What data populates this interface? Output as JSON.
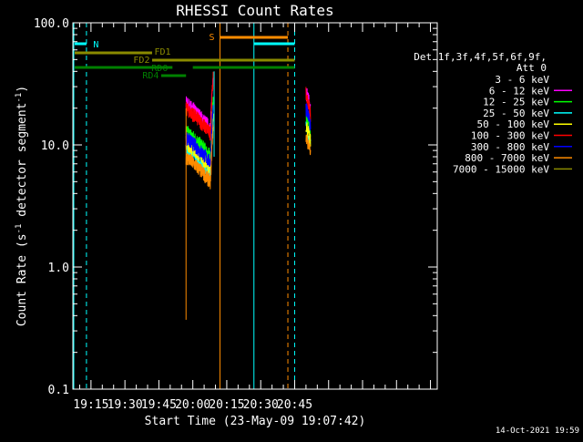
{
  "chart_data": {
    "type": "line",
    "title": "RHESSI Count Rates",
    "xlabel": "Start Time (23-May-09 19:07:42)",
    "ylabel_main": "Count Rate (s",
    "ylabel_sup1": "-1",
    "ylabel_mid": " detector segment",
    "ylabel_sup2": "-1",
    "ylabel_end": ")",
    "x_range_min": [
      1147,
      1308
    ],
    "y_range": [
      0.1,
      100.0
    ],
    "y_scale": "log",
    "x_ticks": [
      {
        "label": "19:15",
        "min": 1155
      },
      {
        "label": "19:30",
        "min": 1170
      },
      {
        "label": "19:45",
        "min": 1185
      },
      {
        "label": "20:00",
        "min": 1200
      },
      {
        "label": "20:15",
        "min": 1215
      },
      {
        "label": "20:30",
        "min": 1230
      },
      {
        "label": "20:45",
        "min": 1245
      }
    ],
    "y_ticks": [
      {
        "label": "0.1",
        "value": 0.1
      },
      {
        "label": "1.0",
        "value": 1.0
      },
      {
        "label": "10.0",
        "value": 10.0
      },
      {
        "label": "100.0",
        "value": 100.0
      }
    ],
    "legend": {
      "header": [
        "Det 1f,3f,4f,5f,6f,9f,",
        "Att 0"
      ],
      "placement": "right"
    },
    "series": [
      {
        "name": "3 - 6 keV",
        "color": "#000000",
        "base": 17.0,
        "post": 22
      },
      {
        "name": "6 - 12 keV",
        "color": "#ff00ff",
        "base": 22.0,
        "post": 28
      },
      {
        "name": "12 - 25 keV",
        "color": "#00ff00",
        "base": 13.0,
        "post": 18
      },
      {
        "name": "25 - 50 keV",
        "color": "#00ffff",
        "base": 9.5,
        "post": 14
      },
      {
        "name": "50 - 100 keV",
        "color": "#ffff00",
        "base": 10.5,
        "post": 15
      },
      {
        "name": "100 - 300 keV",
        "color": "#ff0000",
        "base": 20.0,
        "post": 26
      },
      {
        "name": "300 - 800 keV",
        "color": "#0000ff",
        "base": 11.5,
        "post": 20
      },
      {
        "name": "800 - 7000 keV",
        "color": "#ff8c00",
        "base": 8.0,
        "post": 12
      },
      {
        "name": "7000 - 15000 keV",
        "color": "#8b8b00",
        "base": 0,
        "post": 0
      }
    ],
    "segment": {
      "start_min": 1197,
      "end_min": 1209,
      "post_start_min": 1250,
      "post_end_min": 1252
    },
    "annotations": [
      {
        "label": "N",
        "color": "#00ffff"
      },
      {
        "label": "S",
        "color": "#ff8c00"
      },
      {
        "label": "FD1",
        "color": "#8b8b00"
      },
      {
        "label": "FD2",
        "color": "#8b8b00"
      },
      {
        "label": "RD0",
        "color": "#008000"
      },
      {
        "label": "RD4",
        "color": "#008000"
      }
    ],
    "footer_timestamp": "14-Oct-2021 19:59"
  }
}
